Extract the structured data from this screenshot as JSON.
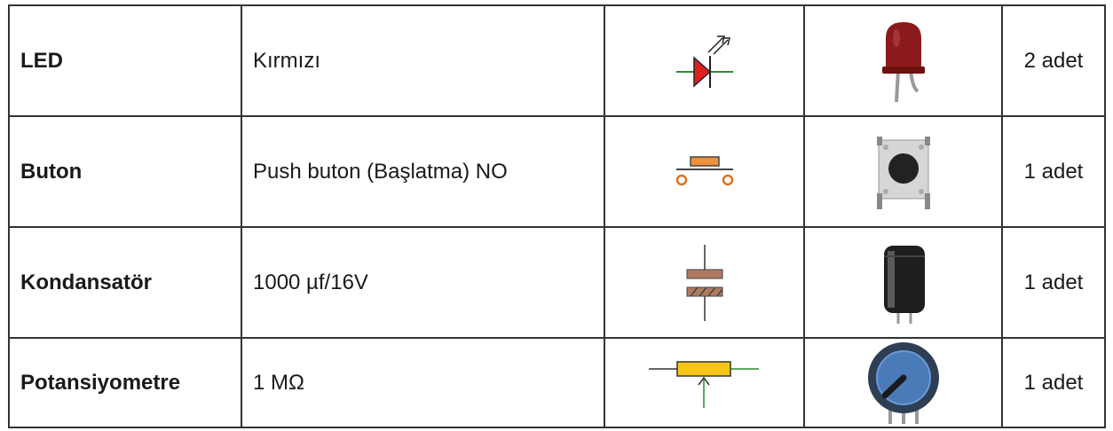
{
  "table": {
    "rows": [
      {
        "name": "LED",
        "description": "Kırmızı",
        "quantity": "2 adet"
      },
      {
        "name": "Buton",
        "description": "Push buton (Başlatma) NO",
        "quantity": "1 adet"
      },
      {
        "name": "Kondansatör",
        "description": "1000 µf/16V",
        "quantity": "1 adet"
      },
      {
        "name": "Potansiyometre",
        "description": "1 MΩ",
        "quantity": "1 adet"
      }
    ]
  }
}
